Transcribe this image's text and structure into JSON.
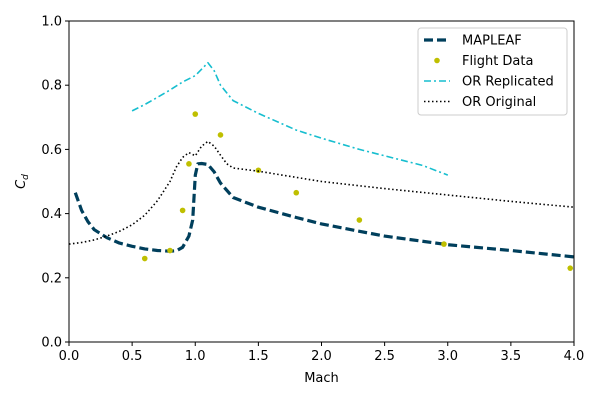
{
  "chart_data": {
    "type": "line",
    "title": "",
    "xlabel": "Mach",
    "ylabel": "C_d",
    "ylabel_main": "C",
    "ylabel_sub": "d",
    "xlim": [
      0.0,
      4.0
    ],
    "ylim": [
      0.0,
      1.0
    ],
    "xticks": [
      0.0,
      0.5,
      1.0,
      1.5,
      2.0,
      2.5,
      3.0,
      3.5,
      4.0
    ],
    "xtick_labels": [
      "0.0",
      "0.5",
      "1.0",
      "1.5",
      "2.0",
      "2.5",
      "3.0",
      "3.5",
      "4.0"
    ],
    "yticks": [
      0.0,
      0.2,
      0.4,
      0.6,
      0.8,
      1.0
    ],
    "ytick_labels": [
      "0.0",
      "0.2",
      "0.4",
      "0.6",
      "0.8",
      "1.0"
    ],
    "grid": false,
    "legend_position": "top-right",
    "series": [
      {
        "name": "MAPLEAF",
        "style": "dashed",
        "color": "#003f5c",
        "x": [
          0.05,
          0.1,
          0.15,
          0.2,
          0.3,
          0.4,
          0.5,
          0.6,
          0.7,
          0.8,
          0.85,
          0.9,
          0.95,
          0.98,
          1.0,
          1.02,
          1.05,
          1.1,
          1.15,
          1.2,
          1.3,
          1.5,
          1.8,
          2.0,
          2.3,
          2.5,
          3.0,
          3.5,
          4.0
        ],
        "y": [
          0.465,
          0.41,
          0.375,
          0.35,
          0.325,
          0.308,
          0.298,
          0.29,
          0.285,
          0.283,
          0.284,
          0.295,
          0.33,
          0.38,
          0.52,
          0.555,
          0.556,
          0.553,
          0.53,
          0.495,
          0.45,
          0.42,
          0.388,
          0.368,
          0.345,
          0.33,
          0.303,
          0.285,
          0.265
        ]
      },
      {
        "name": "Flight Data",
        "style": "markers",
        "color": "#bfbf00",
        "x": [
          0.6,
          0.8,
          0.9,
          0.95,
          1.0,
          1.2,
          1.5,
          1.8,
          2.3,
          2.97,
          3.97
        ],
        "y": [
          0.26,
          0.285,
          0.41,
          0.555,
          0.71,
          0.645,
          0.535,
          0.465,
          0.38,
          0.305,
          0.23
        ]
      },
      {
        "name": "OR Replicated",
        "style": "dashdot",
        "color": "#17becf",
        "x": [
          0.5,
          0.6,
          0.7,
          0.8,
          0.9,
          1.0,
          1.05,
          1.1,
          1.15,
          1.2,
          1.3,
          1.5,
          1.8,
          2.0,
          2.3,
          2.5,
          2.8,
          3.0
        ],
        "y": [
          0.72,
          0.74,
          0.762,
          0.785,
          0.81,
          0.83,
          0.85,
          0.87,
          0.845,
          0.8,
          0.752,
          0.712,
          0.66,
          0.635,
          0.6,
          0.58,
          0.55,
          0.52
        ]
      },
      {
        "name": "OR Original",
        "style": "dotted",
        "color": "#000000",
        "x": [
          0.0,
          0.1,
          0.2,
          0.3,
          0.4,
          0.5,
          0.6,
          0.7,
          0.8,
          0.85,
          0.9,
          0.95,
          1.0,
          1.05,
          1.1,
          1.15,
          1.2,
          1.25,
          1.3,
          1.5,
          2.0,
          2.5,
          3.0,
          3.5,
          4.0
        ],
        "y": [
          0.305,
          0.31,
          0.318,
          0.33,
          0.345,
          0.365,
          0.395,
          0.44,
          0.5,
          0.545,
          0.575,
          0.59,
          0.58,
          0.61,
          0.625,
          0.61,
          0.582,
          0.555,
          0.542,
          0.532,
          0.5,
          0.478,
          0.458,
          0.438,
          0.42
        ]
      }
    ]
  }
}
